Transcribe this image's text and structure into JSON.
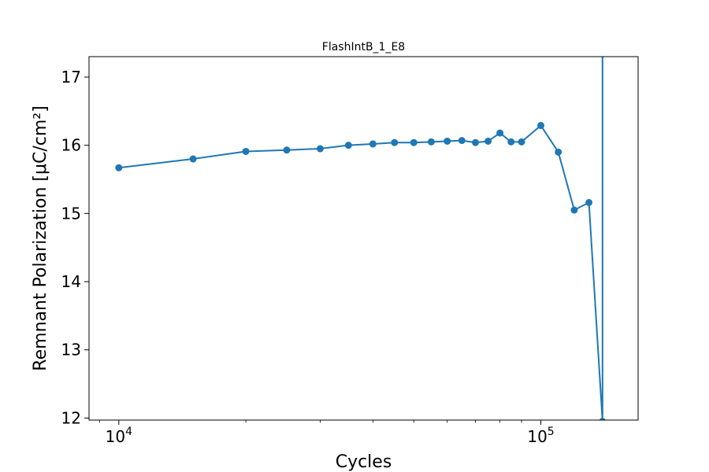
{
  "chart_data": {
    "type": "line",
    "title": "FlashIntB_1_E8",
    "xlabel": "Cycles",
    "ylabel": "Remnant Polarization [μC/cm²]",
    "xscale": "log",
    "xlim": [
      8500,
      170000
    ],
    "ylim": [
      11.97,
      17.3
    ],
    "xticks": [
      {
        "value": 10000,
        "base": "10",
        "exp": "4"
      },
      {
        "value": 100000,
        "base": "10",
        "exp": "5"
      }
    ],
    "yticks": [
      12,
      13,
      14,
      15,
      16,
      17
    ],
    "grid": false,
    "series": [
      {
        "color": "#1f77b4",
        "x": [
          10000,
          15000,
          20000,
          25000,
          30000,
          35000,
          40000,
          45000,
          50000,
          55000,
          60000,
          65000,
          70000,
          75000,
          80000,
          85000,
          90000,
          100000,
          110000,
          120000,
          130000,
          140000,
          140000
        ],
        "y": [
          15.67,
          15.8,
          15.91,
          15.93,
          15.95,
          16.0,
          16.02,
          16.04,
          16.04,
          16.05,
          16.06,
          16.07,
          16.04,
          16.06,
          16.18,
          16.05,
          16.05,
          16.29,
          15.9,
          15.05,
          15.16,
          11.95,
          17.3
        ],
        "markers": [
          true,
          true,
          true,
          true,
          true,
          true,
          true,
          true,
          true,
          true,
          true,
          true,
          true,
          true,
          true,
          true,
          true,
          true,
          true,
          true,
          true,
          true,
          false
        ]
      }
    ]
  }
}
